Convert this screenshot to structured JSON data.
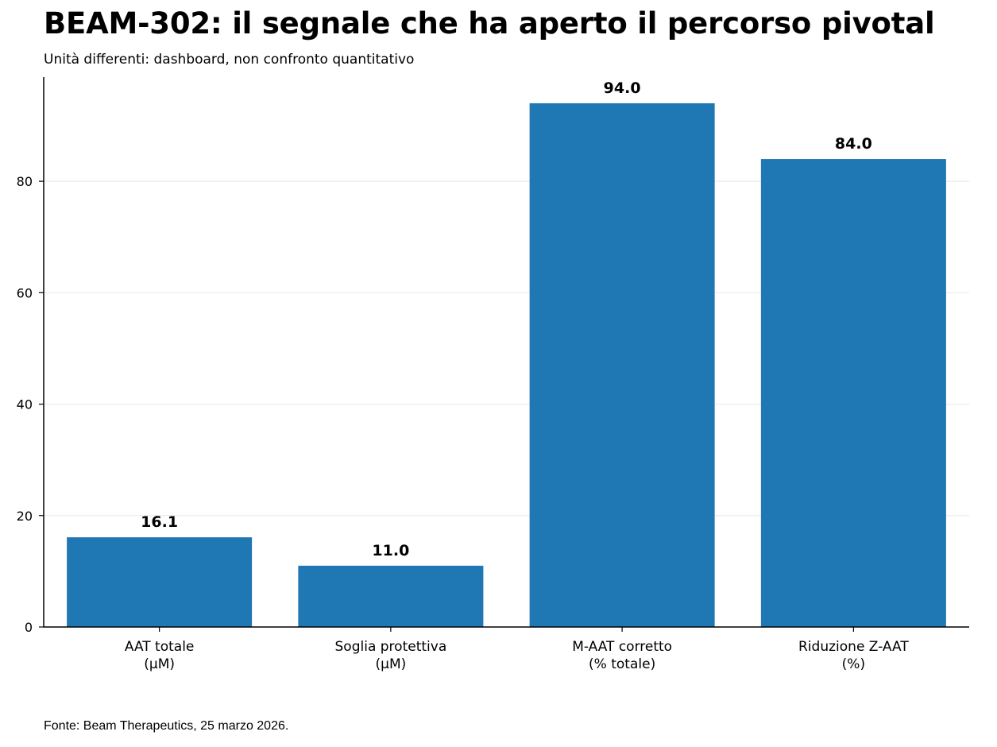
{
  "chart_data": {
    "type": "bar",
    "title": "BEAM-302: il segnale che ha aperto il percorso pivotal",
    "subtitle": "Unità differenti: dashboard, non confronto quantitativo",
    "source": "Fonte: Beam Therapeutics, 25 marzo 2026.",
    "categories": [
      [
        "AAT totale",
        "(µM)"
      ],
      [
        "Soglia protettiva",
        "(µM)"
      ],
      [
        "M-AAT corretto",
        "(% totale)"
      ],
      [
        "Riduzione Z-AAT",
        "(%)"
      ]
    ],
    "values": [
      16.1,
      11.0,
      94.0,
      84.0
    ],
    "value_labels": [
      "16.1",
      "11.0",
      "94.0",
      "84.0"
    ],
    "xlabel": "",
    "ylabel": "",
    "ylim": [
      0,
      98.7
    ],
    "yticks": [
      0,
      20,
      40,
      60,
      80
    ],
    "grid": "horizontal",
    "colors": {
      "bar": "#1f77b4",
      "grid": "#ebebeb",
      "axis": "#000000"
    }
  }
}
